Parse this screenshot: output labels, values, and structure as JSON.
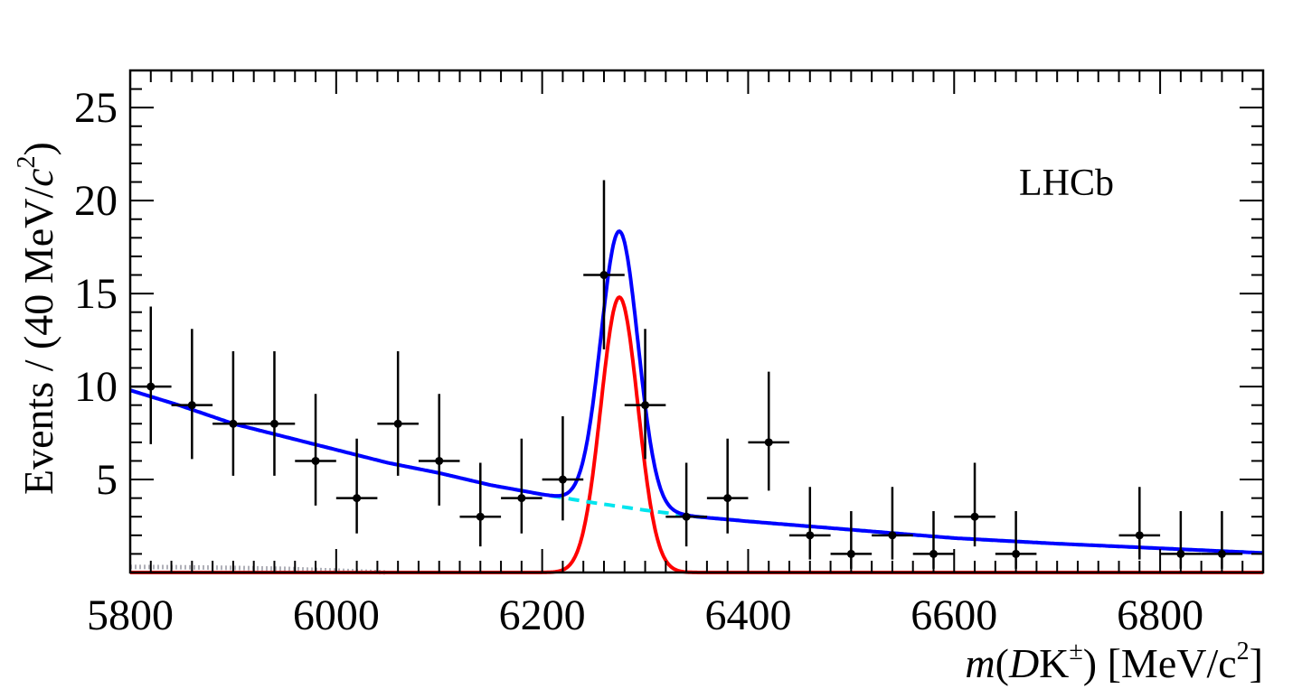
{
  "chart_data": {
    "type": "scatter",
    "annotation": "LHCb",
    "xlabel": {
      "m": "m",
      "open": "(",
      "D": "D",
      "K": "K",
      "pm": "±",
      "close": ")",
      "unit_open": " [MeV/c",
      "two": "2",
      "unit_close": "]"
    },
    "ylabel": {
      "text": "Events / (40 MeV/",
      "c": "c",
      "two": "2",
      "close": ")"
    },
    "xlim": [
      5800,
      6900
    ],
    "ylim": [
      0,
      27
    ],
    "x_ticks": [
      5800,
      6000,
      6200,
      6400,
      6600,
      6800
    ],
    "y_ticks": [
      5,
      10,
      15,
      20,
      25
    ],
    "bin_width": 40,
    "colors": {
      "total": "#0000ff",
      "signal": "#ff0000",
      "background": "#00e5ee",
      "other": "#b0b0b8",
      "data": "#000000"
    },
    "data_points": [
      {
        "x": 5820,
        "y": 10,
        "yerr_low": 3.1,
        "yerr_high": 4.3
      },
      {
        "x": 5860,
        "y": 9,
        "yerr_low": 2.9,
        "yerr_high": 4.1
      },
      {
        "x": 5900,
        "y": 8,
        "yerr_low": 2.8,
        "yerr_high": 3.9
      },
      {
        "x": 5940,
        "y": 8,
        "yerr_low": 2.8,
        "yerr_high": 3.9
      },
      {
        "x": 5980,
        "y": 6,
        "yerr_low": 2.4,
        "yerr_high": 3.6
      },
      {
        "x": 6020,
        "y": 4,
        "yerr_low": 1.9,
        "yerr_high": 3.2
      },
      {
        "x": 6060,
        "y": 8,
        "yerr_low": 2.8,
        "yerr_high": 3.9
      },
      {
        "x": 6100,
        "y": 6,
        "yerr_low": 2.4,
        "yerr_high": 3.6
      },
      {
        "x": 6140,
        "y": 3,
        "yerr_low": 1.6,
        "yerr_high": 2.9
      },
      {
        "x": 6180,
        "y": 4,
        "yerr_low": 1.9,
        "yerr_high": 3.2
      },
      {
        "x": 6220,
        "y": 5,
        "yerr_low": 2.2,
        "yerr_high": 3.4
      },
      {
        "x": 6260,
        "y": 16,
        "yerr_low": 4.0,
        "yerr_high": 5.1
      },
      {
        "x": 6300,
        "y": 9,
        "yerr_low": 2.9,
        "yerr_high": 4.1
      },
      {
        "x": 6340,
        "y": 3,
        "yerr_low": 1.6,
        "yerr_high": 2.9
      },
      {
        "x": 6380,
        "y": 4,
        "yerr_low": 1.9,
        "yerr_high": 3.2
      },
      {
        "x": 6420,
        "y": 7,
        "yerr_low": 2.6,
        "yerr_high": 3.8
      },
      {
        "x": 6460,
        "y": 2,
        "yerr_low": 1.3,
        "yerr_high": 2.6
      },
      {
        "x": 6500,
        "y": 1,
        "yerr_low": 0.8,
        "yerr_high": 2.3
      },
      {
        "x": 6540,
        "y": 2,
        "yerr_low": 1.3,
        "yerr_high": 2.6
      },
      {
        "x": 6580,
        "y": 1,
        "yerr_low": 0.8,
        "yerr_high": 2.3
      },
      {
        "x": 6620,
        "y": 3,
        "yerr_low": 1.6,
        "yerr_high": 2.9
      },
      {
        "x": 6660,
        "y": 1,
        "yerr_low": 0.8,
        "yerr_high": 2.3
      },
      {
        "x": 6780,
        "y": 2,
        "yerr_low": 1.3,
        "yerr_high": 2.6
      },
      {
        "x": 6820,
        "y": 1,
        "yerr_low": 0.8,
        "yerr_high": 2.3
      },
      {
        "x": 6860,
        "y": 1,
        "yerr_low": 0.8,
        "yerr_high": 2.3
      }
    ],
    "curves": [
      {
        "role": "background",
        "style": "dashed",
        "x": [
          5800,
          5850,
          5900,
          5950,
          6000,
          6050,
          6100,
          6150,
          6200,
          6250,
          6300,
          6350,
          6400,
          6500,
          6600,
          6700,
          6800,
          6900
        ],
        "y": [
          9.8,
          8.95,
          8.0,
          7.3,
          6.6,
          5.9,
          5.35,
          4.7,
          4.2,
          3.75,
          3.35,
          3.0,
          2.75,
          2.3,
          1.85,
          1.55,
          1.3,
          1.05
        ]
      },
      {
        "role": "signal",
        "style": "solid",
        "mean": 6275,
        "sigma": 18,
        "amplitude": 14.8
      },
      {
        "role": "other",
        "style": "dotted",
        "x": [
          5800,
          5850,
          5900,
          5950,
          6000,
          6050
        ],
        "y": [
          0.3,
          0.28,
          0.25,
          0.2,
          0.1,
          0
        ]
      }
    ]
  }
}
